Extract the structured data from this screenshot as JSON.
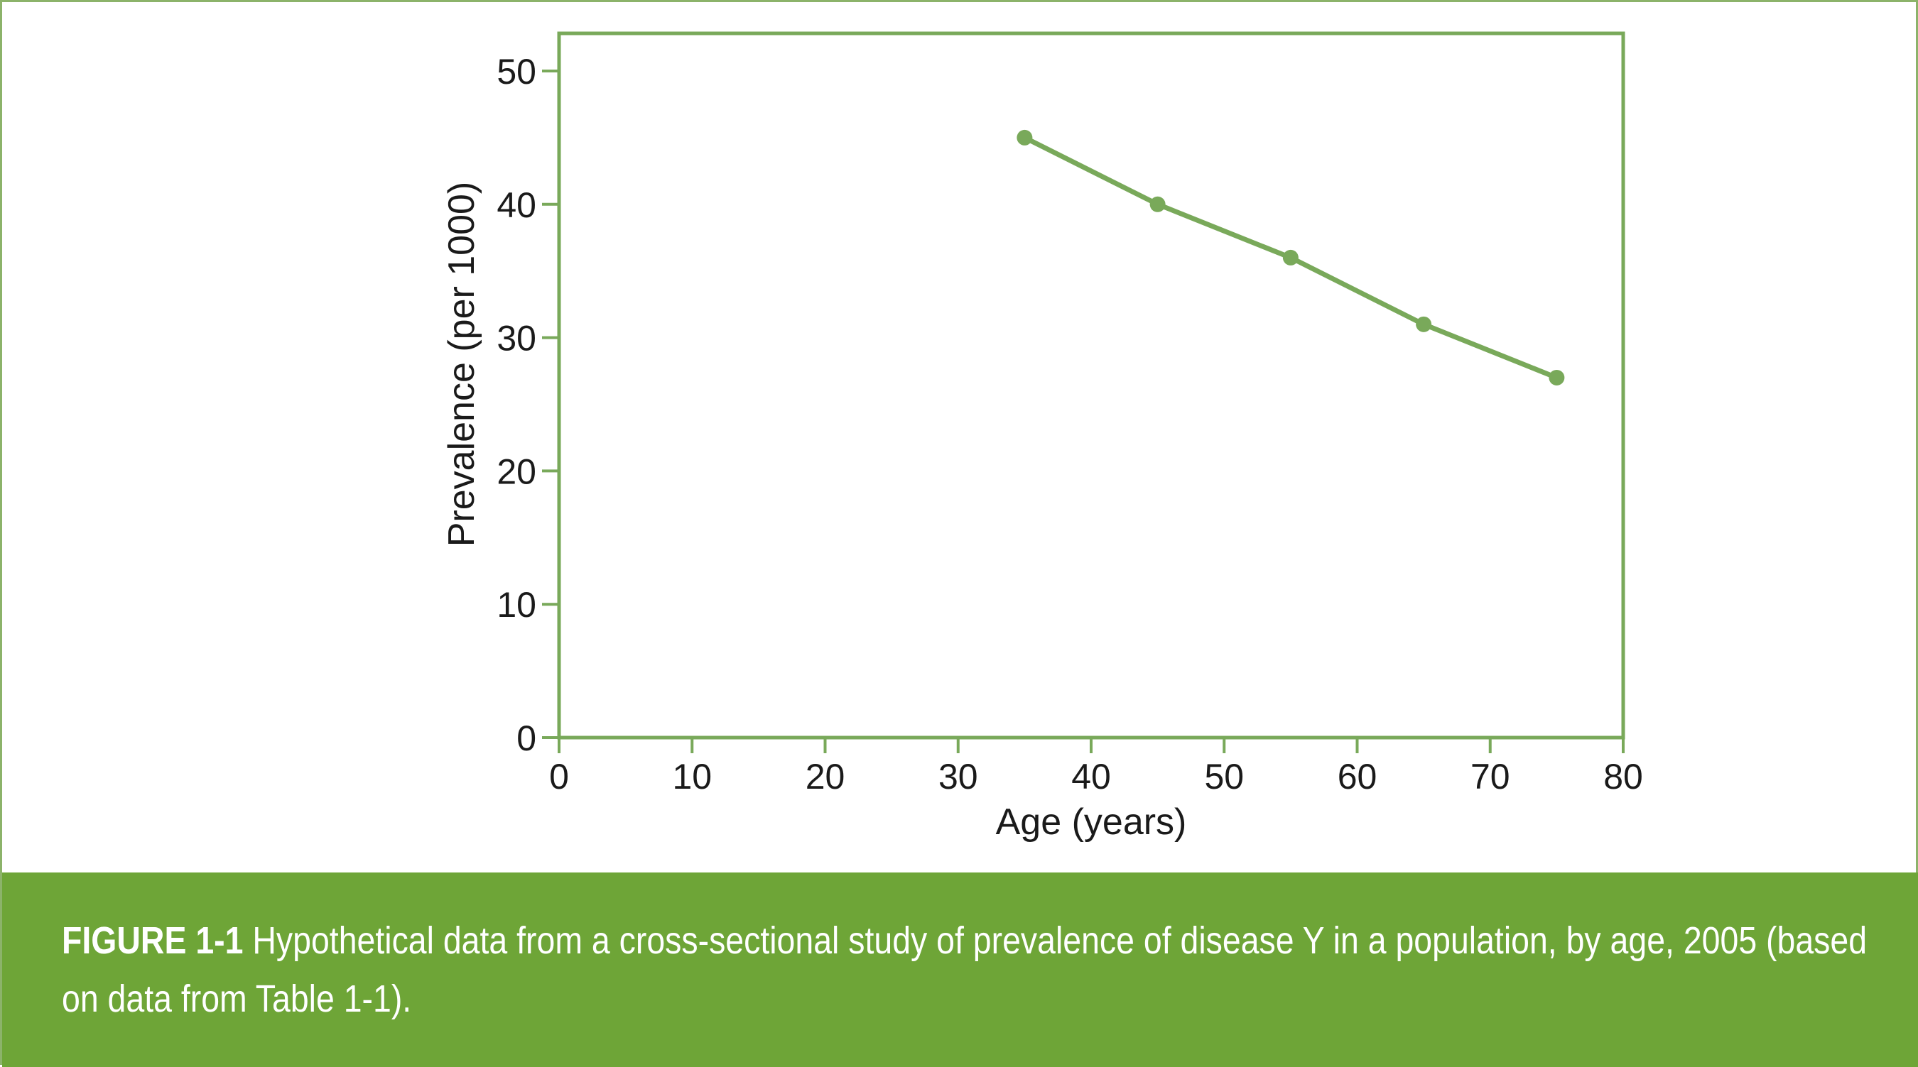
{
  "caption": {
    "label": "FIGURE 1-1",
    "text": "Hypothetical data from a cross-sectional study of prevalence of disease Y in a population, by age, 2005 (based on data from Table 1-1)."
  },
  "colors": {
    "accent": "#79a95a",
    "caption_background": "#6ea537",
    "frame": "#8cb36a",
    "text": "#1a1a1a"
  },
  "chart_data": {
    "type": "line",
    "title": "",
    "xlabel": "Age (years)",
    "ylabel": "Prevalence (per 1000)",
    "xlim": [
      0,
      80
    ],
    "ylim": [
      0,
      50
    ],
    "xticks": [
      0,
      10,
      20,
      30,
      40,
      50,
      60,
      70,
      80
    ],
    "yticks": [
      0,
      10,
      20,
      30,
      40,
      50
    ],
    "grid": false,
    "legend": "none",
    "series": [
      {
        "x": [
          35,
          45,
          55,
          65,
          75
        ],
        "y": [
          45,
          40,
          36,
          31,
          27
        ]
      }
    ]
  }
}
